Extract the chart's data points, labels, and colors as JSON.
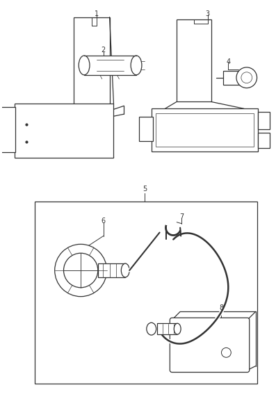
{
  "bg_color": "#ffffff",
  "lc": "#333333",
  "lw": 0.9,
  "thin": 0.5,
  "fig_w": 3.97,
  "fig_h": 5.77,
  "dpi": 100
}
